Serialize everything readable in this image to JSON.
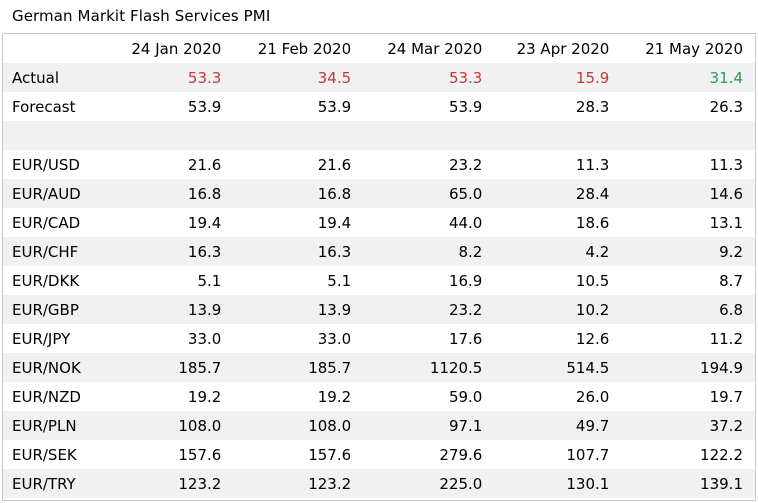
{
  "chart_data": {
    "type": "table",
    "title": "German Markit Flash Services PMI",
    "columns": [
      "24 Jan 2020",
      "21 Feb 2020",
      "24 Mar 2020",
      "23 Apr 2020",
      "21 May 2020"
    ],
    "rows": [
      {
        "label": "Actual",
        "values": [
          "53.3",
          "34.5",
          "53.3",
          "15.9",
          "31.4"
        ],
        "colors": [
          "#c0393b",
          "#c0393b",
          "#c0393b",
          "#c0393b",
          "#2e9a53"
        ]
      },
      {
        "label": "Forecast",
        "values": [
          "53.9",
          "53.9",
          "53.9",
          "28.3",
          "26.3"
        ]
      },
      {
        "label": "",
        "values": [
          "",
          "",
          "",
          "",
          ""
        ]
      },
      {
        "label": "EUR/USD",
        "values": [
          "21.6",
          "21.6",
          "23.2",
          "11.3",
          "11.3"
        ]
      },
      {
        "label": "EUR/AUD",
        "values": [
          "16.8",
          "16.8",
          "65.0",
          "28.4",
          "14.6"
        ]
      },
      {
        "label": "EUR/CAD",
        "values": [
          "19.4",
          "19.4",
          "44.0",
          "18.6",
          "13.1"
        ]
      },
      {
        "label": "EUR/CHF",
        "values": [
          "16.3",
          "16.3",
          "8.2",
          "4.2",
          "9.2"
        ]
      },
      {
        "label": "EUR/DKK",
        "values": [
          "5.1",
          "5.1",
          "16.9",
          "10.5",
          "8.7"
        ]
      },
      {
        "label": "EUR/GBP",
        "values": [
          "13.9",
          "13.9",
          "23.2",
          "10.2",
          "6.8"
        ]
      },
      {
        "label": "EUR/JPY",
        "values": [
          "33.0",
          "33.0",
          "17.6",
          "12.6",
          "11.2"
        ]
      },
      {
        "label": "EUR/NOK",
        "values": [
          "185.7",
          "185.7",
          "1120.5",
          "514.5",
          "194.9"
        ]
      },
      {
        "label": "EUR/NZD",
        "values": [
          "19.2",
          "19.2",
          "59.0",
          "26.0",
          "19.7"
        ]
      },
      {
        "label": "EUR/PLN",
        "values": [
          "108.0",
          "108.0",
          "97.1",
          "49.7",
          "37.2"
        ]
      },
      {
        "label": "EUR/SEK",
        "values": [
          "157.6",
          "157.6",
          "279.6",
          "107.7",
          "122.2"
        ]
      },
      {
        "label": "EUR/TRY",
        "values": [
          "123.2",
          "123.2",
          "225.0",
          "130.1",
          "139.1"
        ]
      }
    ]
  },
  "colors": {
    "negative": "#c0393b",
    "positive": "#2e9a53",
    "stripe": "#f1f1f1",
    "border": "#c8c8c8"
  }
}
